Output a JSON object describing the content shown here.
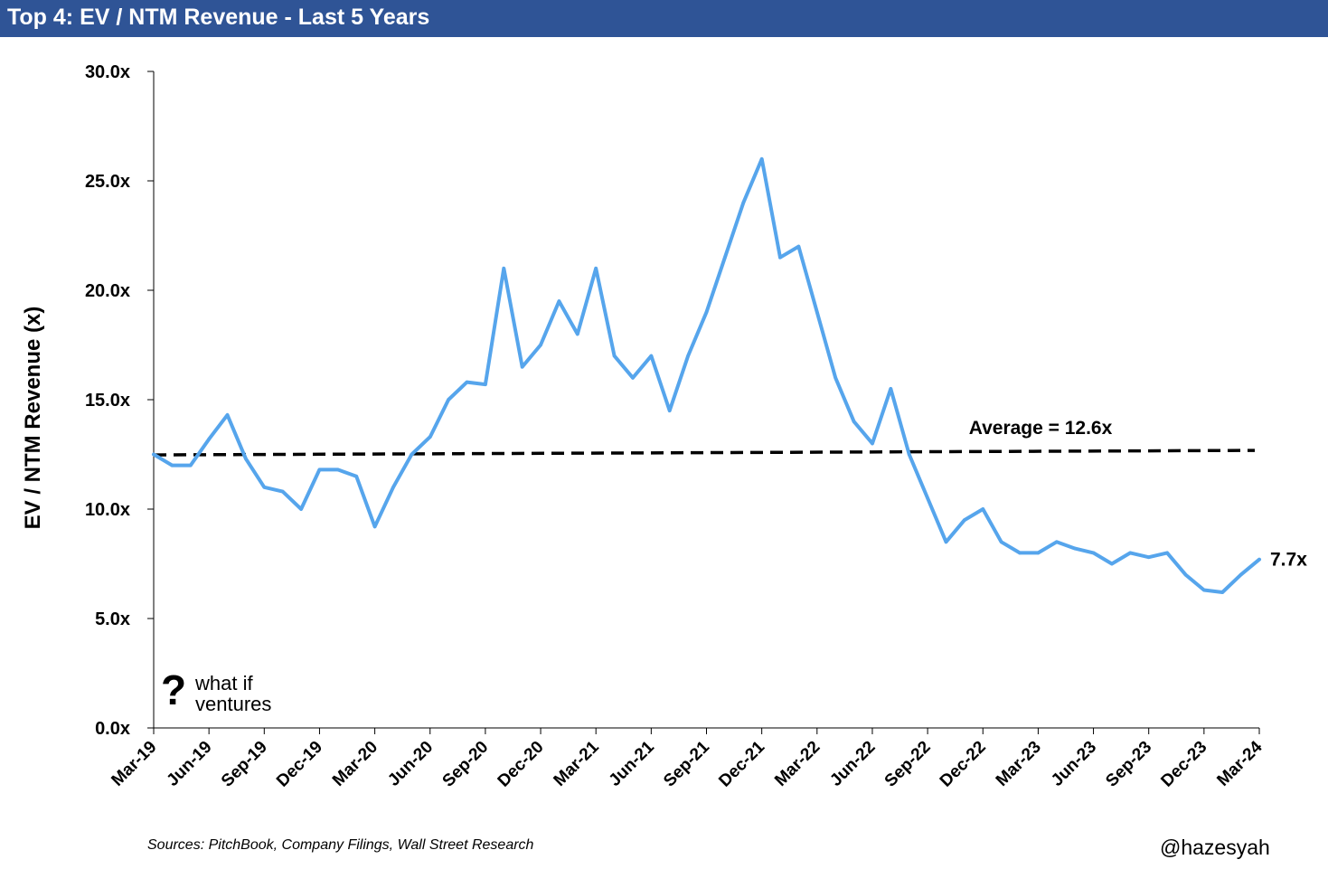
{
  "header": {
    "title": "Top 4: EV / NTM Revenue - Last 5 Years"
  },
  "footer": {
    "source": "Sources: PitchBook, Company Filings, Wall Street Research",
    "handle": "@hazesyah"
  },
  "logo": {
    "mark": "?",
    "line1": "what if",
    "line2": "ventures"
  },
  "colors": {
    "series": "#56a5ec",
    "average": "#000000",
    "title_bar": "#2f5496"
  },
  "chart_data": {
    "type": "line",
    "ylabel": "EV / NTM Revenue (x)",
    "ylim": [
      0,
      30
    ],
    "y_ticks": [
      "0.0x",
      "5.0x",
      "10.0x",
      "15.0x",
      "20.0x",
      "25.0x",
      "30.0x"
    ],
    "x_ticks": [
      "Mar-19",
      "Jun-19",
      "Sep-19",
      "Dec-19",
      "Mar-20",
      "Jun-20",
      "Sep-20",
      "Dec-20",
      "Mar-21",
      "Jun-21",
      "Sep-21",
      "Dec-21",
      "Mar-22",
      "Jun-22",
      "Sep-22",
      "Dec-22",
      "Mar-23",
      "Jun-23",
      "Sep-23",
      "Dec-23",
      "Mar-24"
    ],
    "grid": false,
    "legend": "none",
    "average": {
      "label": "Average = 12.6x",
      "value": 12.6,
      "style": "dashed"
    },
    "last_value_label": "7.7x",
    "series": [
      {
        "x": [
          "2019-03",
          "2019-04",
          "2019-05",
          "2019-06",
          "2019-07",
          "2019-08",
          "2019-09",
          "2019-10",
          "2019-11",
          "2019-12",
          "2020-01",
          "2020-02",
          "2020-03",
          "2020-04",
          "2020-05",
          "2020-06",
          "2020-07",
          "2020-08",
          "2020-09",
          "2020-10",
          "2020-11",
          "2020-12",
          "2021-01",
          "2021-02",
          "2021-03",
          "2021-04",
          "2021-05",
          "2021-06",
          "2021-07",
          "2021-08",
          "2021-09",
          "2021-10",
          "2021-11",
          "2021-12",
          "2022-01",
          "2022-02",
          "2022-03",
          "2022-04",
          "2022-05",
          "2022-06",
          "2022-07",
          "2022-08",
          "2022-09",
          "2022-10",
          "2022-11",
          "2022-12",
          "2023-01",
          "2023-02",
          "2023-03",
          "2023-04",
          "2023-05",
          "2023-06",
          "2023-07",
          "2023-08",
          "2023-09",
          "2023-10",
          "2023-11",
          "2023-12",
          "2024-01",
          "2024-02",
          "2024-03"
        ],
        "values": [
          12.5,
          12.0,
          12.0,
          13.2,
          14.3,
          12.3,
          11.0,
          10.8,
          10.0,
          11.8,
          11.8,
          11.5,
          9.2,
          11.0,
          12.5,
          13.3,
          15.0,
          15.8,
          15.7,
          21.0,
          16.5,
          17.5,
          19.5,
          18.0,
          21.0,
          17.0,
          16.0,
          17.0,
          14.5,
          17.0,
          19.0,
          21.5,
          24.0,
          26.0,
          21.5,
          22.0,
          19.0,
          16.0,
          14.0,
          13.0,
          15.5,
          12.5,
          10.5,
          8.5,
          9.5,
          10.0,
          8.5,
          8.0,
          8.0,
          8.5,
          8.2,
          8.0,
          7.5,
          8.0,
          7.8,
          8.0,
          7.0,
          6.3,
          6.2,
          7.0,
          7.7
        ]
      }
    ]
  }
}
